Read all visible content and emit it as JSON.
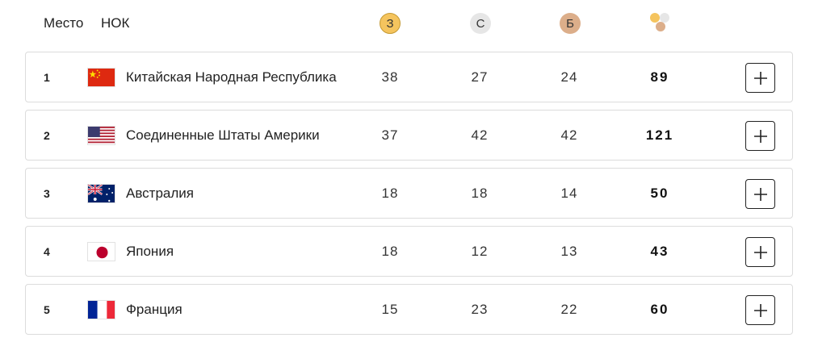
{
  "header": {
    "place_label": "Место",
    "noc_label": "НОК",
    "gold_label": "З",
    "silver_label": "С",
    "bronze_label": "Б",
    "total_icon": "medals-total-icon"
  },
  "colors": {
    "gold": "#f5c45e",
    "silver": "#e6e6e6",
    "bronze": "#dcae8a",
    "border": "#dcdcdc"
  },
  "rows": [
    {
      "rank": "1",
      "country": "Китайская Народная Республика",
      "flag": "china-flag-icon",
      "gold": "38",
      "silver": "27",
      "bronze": "24",
      "total": "89"
    },
    {
      "rank": "2",
      "country": "Соединенные Штаты Америки",
      "flag": "usa-flag-icon",
      "gold": "37",
      "silver": "42",
      "bronze": "42",
      "total": "121"
    },
    {
      "rank": "3",
      "country": "Австралия",
      "flag": "australia-flag-icon",
      "gold": "18",
      "silver": "18",
      "bronze": "14",
      "total": "50"
    },
    {
      "rank": "4",
      "country": "Япония",
      "flag": "japan-flag-icon",
      "gold": "18",
      "silver": "12",
      "bronze": "13",
      "total": "43"
    },
    {
      "rank": "5",
      "country": "Франция",
      "flag": "france-flag-icon",
      "gold": "15",
      "silver": "23",
      "bronze": "22",
      "total": "60"
    }
  ]
}
